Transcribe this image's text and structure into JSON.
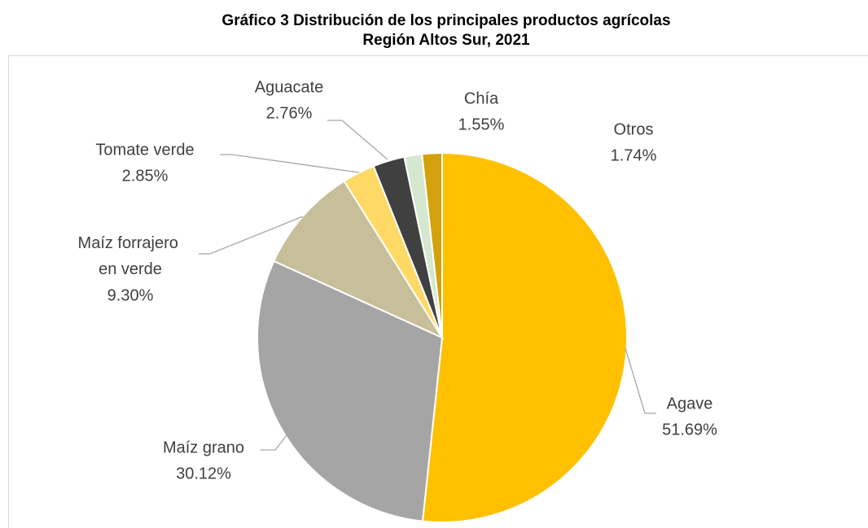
{
  "chart_data": {
    "type": "pie",
    "title": "Gráfico 3 Distribución de los principales productos agrícolas",
    "subtitle": "Región Altos Sur, 2021",
    "categories": [
      "Agave",
      "Maíz grano",
      "Maíz forrajero en verde",
      "Tomate verde",
      "Aguacate",
      "Chía",
      "Otros"
    ],
    "values": [
      51.69,
      30.12,
      9.3,
      2.85,
      2.76,
      1.55,
      1.74
    ],
    "value_labels": [
      "51.69%",
      "30.12%",
      "9.30%",
      "2.85%",
      "2.76%",
      "1.55%",
      "1.74%"
    ],
    "colors": [
      "#FFC000",
      "#A5A5A5",
      "#C7BE9A",
      "#FFD966",
      "#404040",
      "#D5E8CF",
      "#D4A00C"
    ]
  }
}
